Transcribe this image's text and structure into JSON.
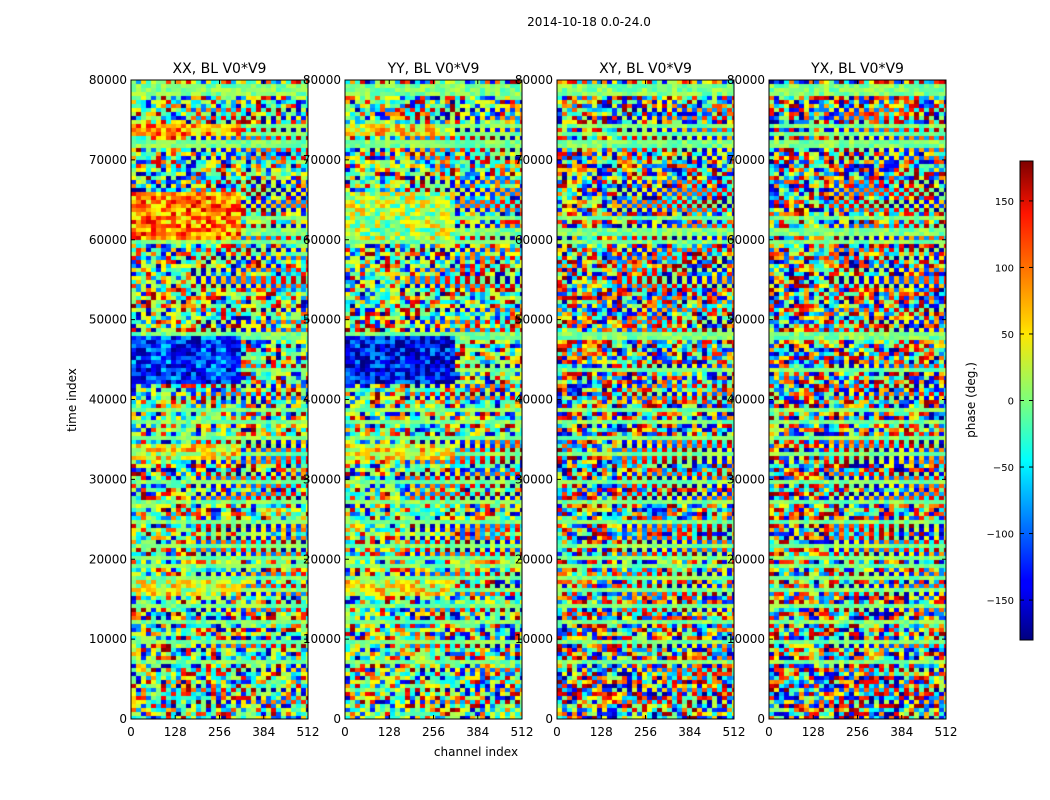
{
  "chart_data": {
    "type": "heatmap",
    "title": "2014-10-18 0.0-24.0",
    "xlabel": "channel index",
    "ylabel": "time index",
    "xlim": [
      0,
      512
    ],
    "ylim": [
      0,
      80000
    ],
    "x_ticks": [
      0,
      128,
      256,
      384,
      512
    ],
    "y_ticks": [
      0,
      10000,
      20000,
      30000,
      40000,
      50000,
      60000,
      70000,
      80000
    ],
    "colormap": "jet",
    "colorbar": {
      "label": "phase (deg.)",
      "range": [
        -180,
        180
      ],
      "ticks": [
        -150,
        -100,
        -50,
        0,
        50,
        100,
        150
      ],
      "tick_labels": [
        "−150",
        "−100",
        "−50",
        "0",
        "50",
        "100",
        "150"
      ]
    },
    "panels": [
      {
        "title": "XX, BL V0*V9"
      },
      {
        "title": "YY, BL V0*V9"
      },
      {
        "title": "XY, BL V0*V9"
      },
      {
        "title": "YX, BL V0*V9"
      }
    ]
  }
}
